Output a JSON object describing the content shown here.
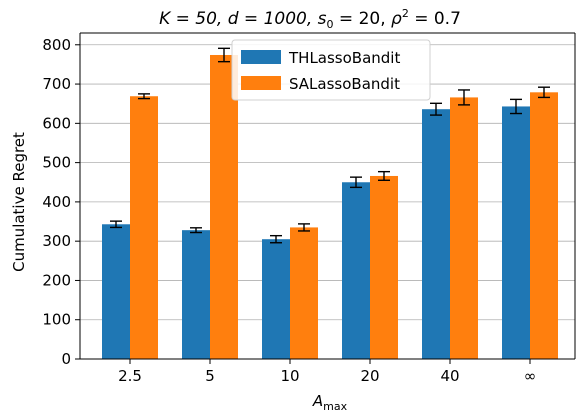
{
  "chart_data": {
    "type": "bar",
    "title_parts": {
      "k": "K = 50, ",
      "d": "d = 1000, ",
      "s": "s",
      "s_sub": "0",
      "s_rest": " = 20, ",
      "rho": "ρ",
      "rho_sup": "2",
      "rho_rest": " = 0.7"
    },
    "xlabel_main": "A",
    "xlabel_sub": "max",
    "ylabel": "Cumulative Regret",
    "categories": [
      "2.5",
      "5",
      "10",
      "20",
      "40",
      "∞"
    ],
    "yticks": [
      "0",
      "100",
      "200",
      "300",
      "400",
      "500",
      "600",
      "700",
      "800"
    ],
    "ylim": [
      0,
      830
    ],
    "grid": "y",
    "legend_position": "top-center",
    "series": [
      {
        "name": "THLassoBandit",
        "color": "#1f77b4",
        "values": [
          343,
          328,
          305,
          450,
          636,
          643
        ],
        "errors": [
          8,
          6,
          9,
          13,
          15,
          18
        ]
      },
      {
        "name": "SALassoBandit",
        "color": "#ff7f0e",
        "values": [
          669,
          774,
          335,
          466,
          666,
          679
        ],
        "errors": [
          6,
          17,
          9,
          11,
          19,
          13
        ]
      }
    ]
  }
}
